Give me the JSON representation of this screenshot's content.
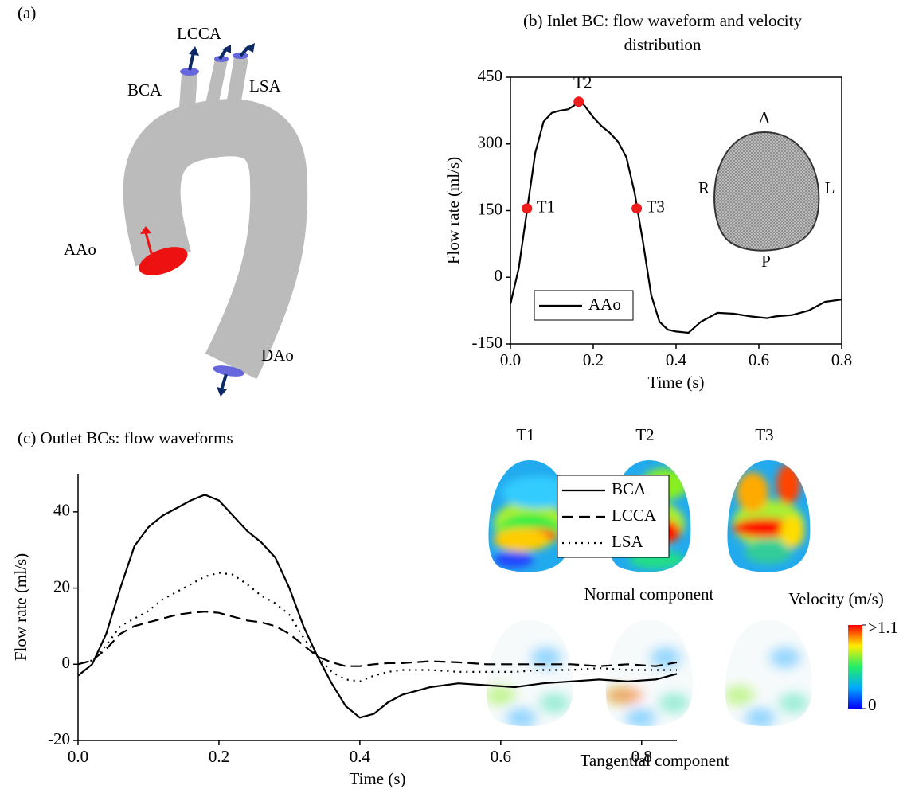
{
  "panel_a": {
    "label": "(a)",
    "vessels": {
      "lcca": "LCCA",
      "bca": "BCA",
      "lsa": "LSA",
      "aao": "AAo",
      "dao": "DAo"
    }
  },
  "inlet_section": {
    "anterior": "A",
    "posterior": "P",
    "right": "R",
    "left": "L"
  },
  "chart_data": [
    {
      "type": "line",
      "title": [
        "(b) Inlet BC: flow waveform and velocity",
        "distribution"
      ],
      "x_label": "Time (s)",
      "y_label": "Flow rate (ml/s)",
      "x": [
        0,
        0.02,
        0.04,
        0.06,
        0.08,
        0.1,
        0.12,
        0.14,
        0.16,
        0.17,
        0.18,
        0.2,
        0.22,
        0.24,
        0.26,
        0.28,
        0.3,
        0.32,
        0.34,
        0.36,
        0.38,
        0.4,
        0.43,
        0.46,
        0.5,
        0.54,
        0.58,
        0.62,
        0.64,
        0.68,
        0.72,
        0.76,
        0.8
      ],
      "series": [
        {
          "name": "AAo",
          "color": "#000000",
          "dash": "solid",
          "values": [
            -60,
            20,
            150,
            280,
            350,
            370,
            375,
            378,
            390,
            395,
            385,
            360,
            340,
            325,
            305,
            270,
            190,
            80,
            -40,
            -100,
            -118,
            -122,
            -125,
            -100,
            -80,
            -82,
            -88,
            -92,
            -88,
            -85,
            -75,
            -55,
            -50
          ]
        }
      ],
      "markers": [
        {
          "label": "T1",
          "x": 0.04,
          "y": 155
        },
        {
          "label": "T2",
          "x": 0.165,
          "y": 395
        },
        {
          "label": "T3",
          "x": 0.305,
          "y": 155
        }
      ],
      "marker_color": "#ee1c1c",
      "xlim": [
        0,
        0.8
      ],
      "xticks": [
        {
          "value": 0,
          "label": "0.0"
        },
        0.2,
        0.4,
        0.6,
        0.8
      ],
      "ylim": [
        -150,
        450
      ],
      "yticks": [
        -150,
        0,
        150,
        300,
        450
      ],
      "legend": "lower left",
      "box": true
    },
    {
      "type": "line",
      "title": [
        "(c) Outlet BCs: flow waveforms"
      ],
      "x_label": "Time (s)",
      "y_label": "Flow rate (ml/s)",
      "x": [
        0,
        0.02,
        0.04,
        0.06,
        0.08,
        0.1,
        0.12,
        0.14,
        0.16,
        0.18,
        0.2,
        0.22,
        0.24,
        0.26,
        0.28,
        0.3,
        0.32,
        0.34,
        0.36,
        0.38,
        0.4,
        0.42,
        0.44,
        0.46,
        0.5,
        0.54,
        0.58,
        0.62,
        0.66,
        0.7,
        0.74,
        0.78,
        0.82,
        0.85
      ],
      "series": [
        {
          "name": "BCA",
          "color": "#000000",
          "dash": "solid",
          "values": [
            -3,
            0,
            8,
            20,
            31,
            36,
            39,
            41,
            43,
            44.5,
            43,
            39,
            35,
            32,
            28,
            20,
            10,
            2,
            -5,
            -11,
            -14,
            -13,
            -10,
            -8,
            -6,
            -5,
            -5.5,
            -6,
            -5,
            -4.5,
            -4,
            -4.5,
            -4,
            -2.5
          ]
        },
        {
          "name": "LCCA",
          "color": "#000000",
          "dash": "dashed",
          "values": [
            0,
            1,
            4,
            8,
            10,
            11,
            12,
            13,
            13.5,
            13.8,
            13.5,
            12.5,
            11.5,
            11,
            10,
            8,
            5,
            2,
            0.5,
            -0.5,
            -0.5,
            0,
            0.3,
            0.3,
            0.8,
            0.5,
            0,
            0,
            0,
            0,
            -0.5,
            0,
            -0.5,
            0.5
          ]
        },
        {
          "name": "LSA",
          "color": "#000000",
          "dash": "dotted",
          "values": [
            0,
            1,
            5,
            10,
            12,
            14,
            17,
            19,
            21,
            23,
            24,
            23.5,
            21,
            18,
            16,
            13,
            7,
            2,
            -2,
            -4,
            -4.5,
            -3,
            -2,
            -1.5,
            -1.5,
            -2,
            -2,
            -2,
            -1.5,
            -1.5,
            -1,
            -1.5,
            -1.5,
            -1.5
          ]
        }
      ],
      "xlim": [
        0,
        0.85
      ],
      "xticks": [
        {
          "value": 0,
          "label": "0.0"
        },
        0.2,
        0.4,
        0.6,
        0.8
      ],
      "ylim": [
        -20,
        50
      ],
      "yticks": [
        -20,
        0,
        20,
        40
      ],
      "legend": "upper right",
      "box": false
    }
  ],
  "velocity_maps": {
    "times": [
      "T1",
      "T2",
      "T3"
    ],
    "normal_label": "Normal component",
    "tangential_label": "Tangential component",
    "colorbar": {
      "title": "Velocity (m/s)",
      "ticks": [
        {
          "value": 1.1,
          "label": ">1.1"
        },
        0
      ]
    }
  }
}
